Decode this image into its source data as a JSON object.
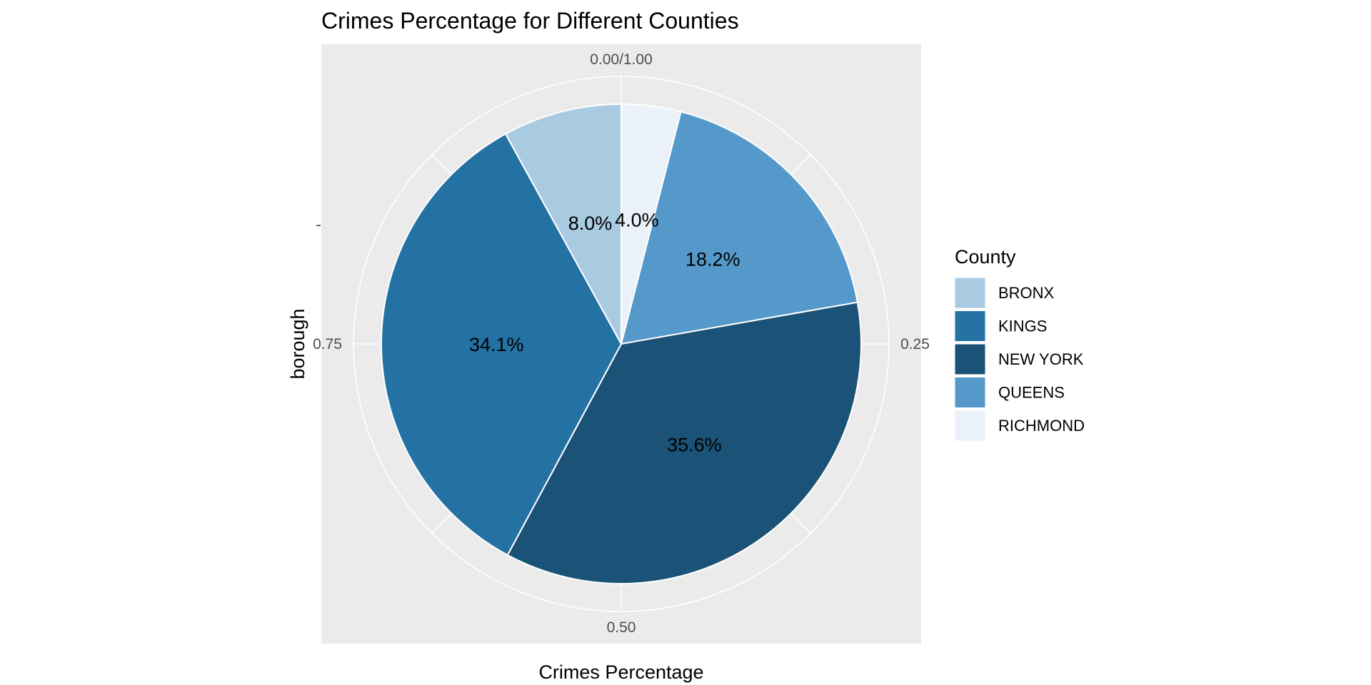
{
  "chart_data": {
    "type": "pie",
    "title": "Crimes Percentage for Different Counties",
    "xlabel": "Crimes Percentage",
    "ylabel": "borough",
    "theta_ticks": [
      {
        "value": 0.0,
        "label": "0.00/1.00"
      },
      {
        "value": 0.25,
        "label": "0.25"
      },
      {
        "value": 0.5,
        "label": "0.50"
      },
      {
        "value": 0.75,
        "label": "0.75"
      }
    ],
    "categories": [
      "RICHMOND",
      "QUEENS",
      "NEW YORK",
      "KINGS",
      "BRONX"
    ],
    "values": [
      0.04,
      0.182,
      0.356,
      0.341,
      0.08
    ],
    "labels": [
      "4.0%",
      "18.2%",
      "35.6%",
      "34.1%",
      "8.0%"
    ],
    "colors": [
      "#eaf1f8",
      "#5599ca",
      "#1b5277",
      "#2471a3",
      "#a9cbe2"
    ],
    "legend": {
      "title": "County",
      "position": "right",
      "entries": [
        {
          "name": "BRONX",
          "color": "#a9cbe2"
        },
        {
          "name": "KINGS",
          "color": "#2471a3"
        },
        {
          "name": "NEW YORK",
          "color": "#1b5277"
        },
        {
          "name": "QUEENS",
          "color": "#5599ca"
        },
        {
          "name": "RICHMOND",
          "color": "#eaf1f8"
        }
      ]
    },
    "panel_background": "#ebebeb",
    "grid": true
  }
}
